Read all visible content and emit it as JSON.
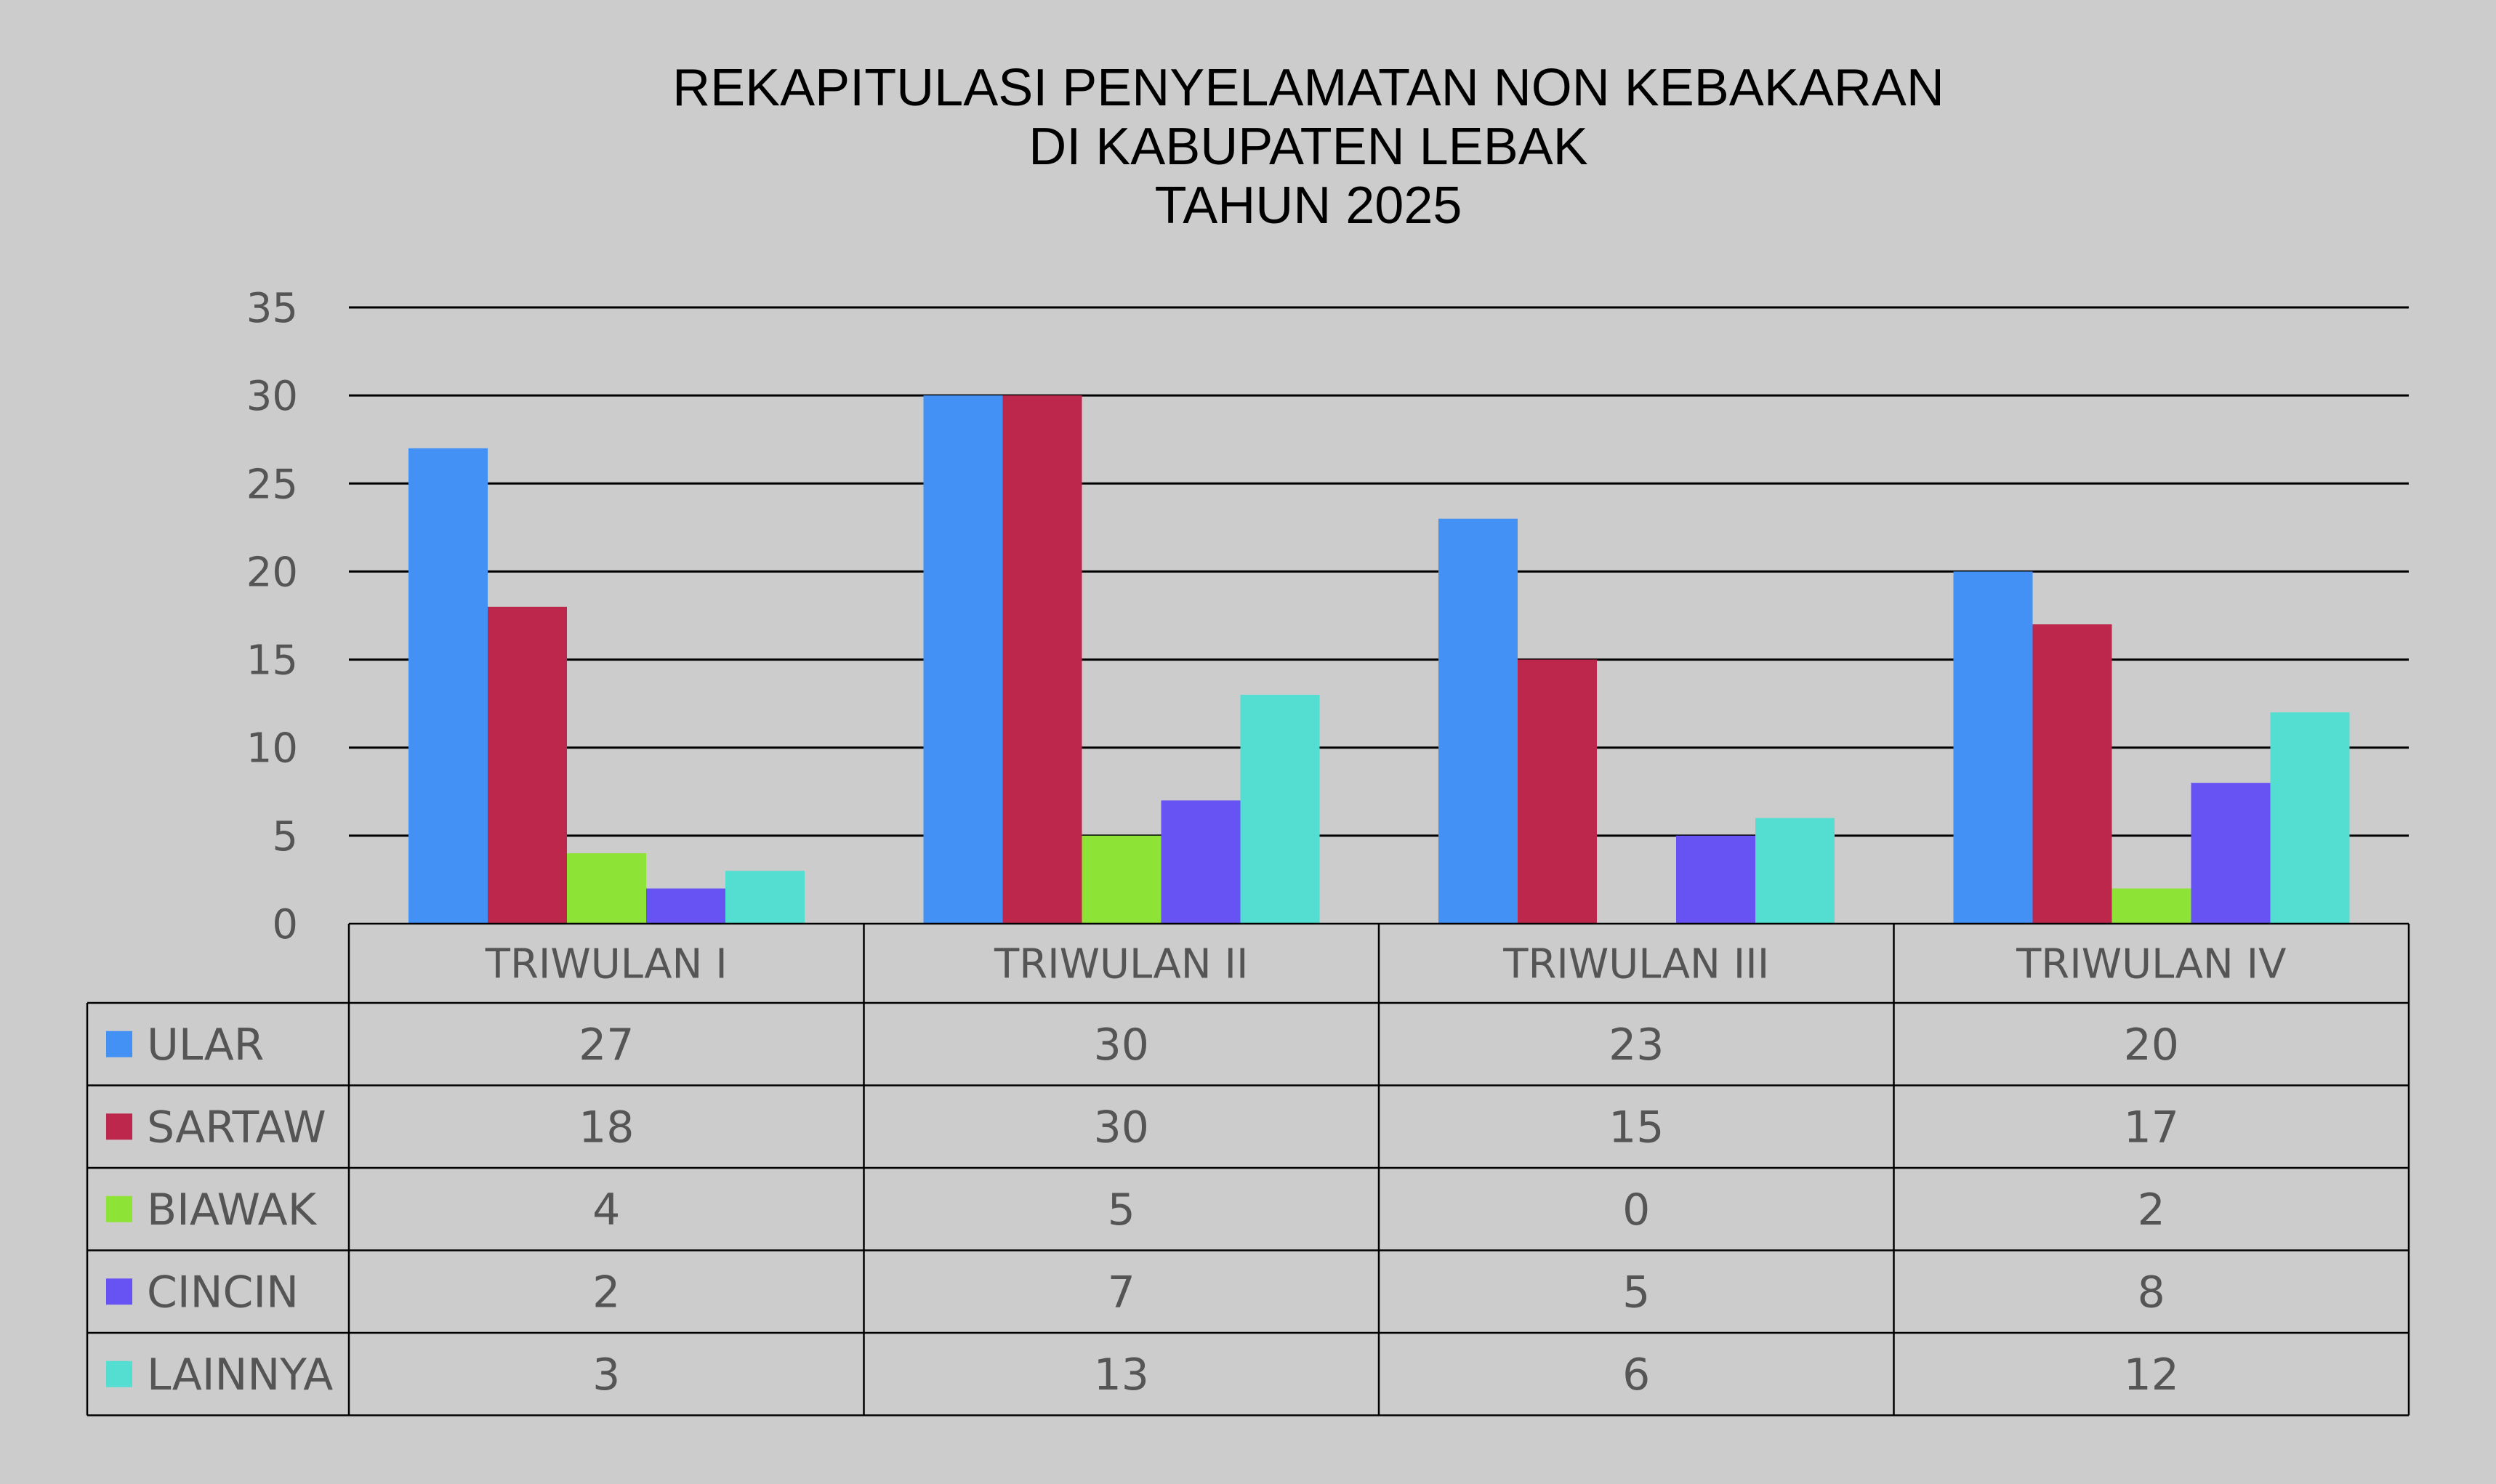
{
  "chart_data": {
    "type": "bar",
    "title": [
      "REKAPITULASI PENYELAMATAN NON KEBAKARAN",
      "DI KABUPATEN LEBAK",
      "TAHUN 2025"
    ],
    "categories": [
      "TRIWULAN I",
      "TRIWULAN II",
      "TRIWULAN III",
      "TRIWULAN IV"
    ],
    "series": [
      {
        "name": "ULAR",
        "color": "#4391f5",
        "values": [
          27,
          30,
          23,
          20
        ]
      },
      {
        "name": "SARTAW",
        "color": "#bd274b",
        "values": [
          18,
          30,
          15,
          17
        ]
      },
      {
        "name": "BIAWAK",
        "color": "#8de437",
        "values": [
          4,
          5,
          0,
          2
        ]
      },
      {
        "name": "CINCIN",
        "color": "#6752f3",
        "values": [
          2,
          7,
          5,
          8
        ]
      },
      {
        "name": "LAINNYA",
        "color": "#54ddd1",
        "values": [
          3,
          13,
          6,
          12
        ]
      }
    ],
    "ylim": [
      0,
      35
    ],
    "yticks": [
      0,
      5,
      10,
      15,
      20,
      25,
      30,
      35
    ],
    "grid": true,
    "legend": "data-table-left"
  }
}
